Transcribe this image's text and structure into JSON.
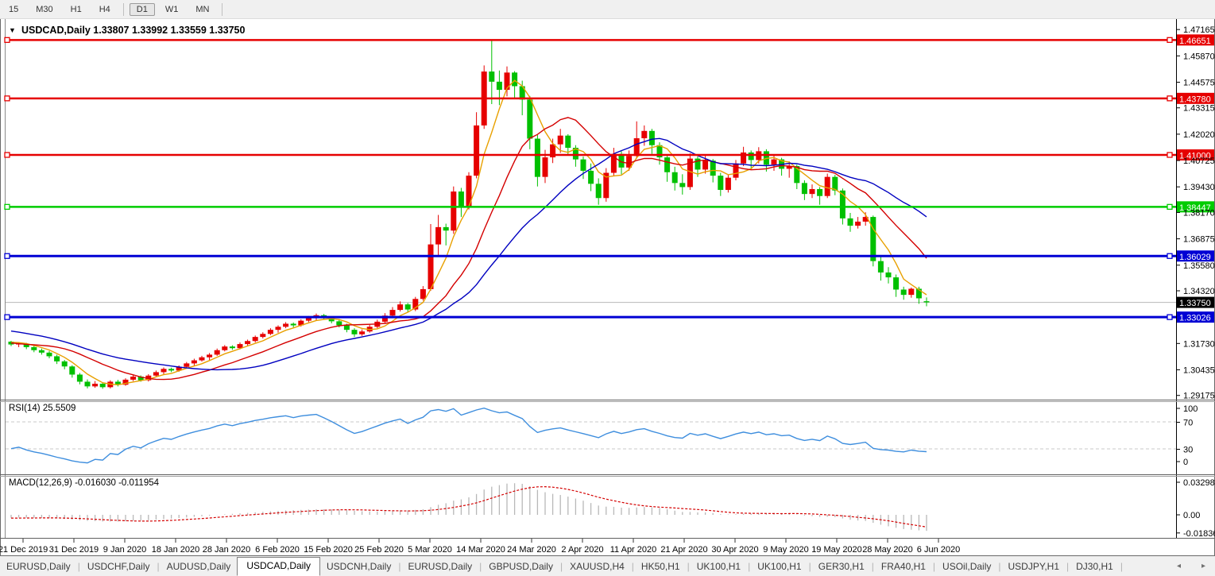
{
  "toolbar": {
    "timeframes": [
      "15",
      "M30",
      "H1",
      "H4",
      "D1",
      "W1",
      "MN"
    ],
    "active": "D1",
    "separators_after": [
      "H4",
      "MN"
    ]
  },
  "chart": {
    "dropdown_glyph": "▼",
    "title": "USDCAD,Daily  1.33807 1.33992 1.33559 1.33750",
    "symbol": "USDCAD",
    "period": "Daily"
  },
  "chart_data": {
    "type": "candlestick",
    "title": "USDCAD,Daily",
    "ohlc_current": {
      "open": "1.33807",
      "high": "1.33992",
      "low": "1.33559",
      "close": "1.33750"
    },
    "colors": {
      "bull_candle": "#e60000",
      "bear_candle": "#00c000",
      "ma_fast": "#e8a000",
      "ma_mid": "#d40000",
      "ma_slow": "#0000c0",
      "red_level": "#e60000",
      "green_level": "#00cc00",
      "blue_level": "#0000d4",
      "current_price_line": "#b8b8b8",
      "rsi_line": "#3e8ede",
      "macd_hist": "#b8b8b8",
      "macd_signal": "#d40000"
    },
    "y_ticks": [
      "1.47165",
      "1.45870",
      "1.44575",
      "1.43315",
      "1.42020",
      "1.40725",
      "1.39430",
      "1.38170",
      "1.36875",
      "1.35580",
      "1.34320",
      "1.31730",
      "1.30435",
      "1.29175"
    ],
    "x_labels": [
      "21 Dec 2019",
      "31 Dec 2019",
      "9 Jan 2020",
      "18 Jan 2020",
      "28 Jan 2020",
      "6 Feb 2020",
      "15 Feb 2020",
      "25 Feb 2020",
      "5 Mar 2020",
      "14 Mar 2020",
      "24 Mar 2020",
      "2 Apr 2020",
      "11 Apr 2020",
      "21 Apr 2020",
      "30 Apr 2020",
      "9 May 2020",
      "19 May 2020",
      "28 May 2020",
      "6 Jun 2020"
    ],
    "hlines": [
      {
        "price": 1.46651,
        "label": "1.46651",
        "color": "red"
      },
      {
        "price": 1.4378,
        "label": "1.43780",
        "color": "red"
      },
      {
        "price": 1.41,
        "label": "1.41000",
        "color": "red"
      },
      {
        "price": 1.38447,
        "label": "1.38447",
        "color": "green"
      },
      {
        "price": 1.36029,
        "label": "1.36029",
        "color": "blue"
      },
      {
        "price": 1.33026,
        "label": "1.33026",
        "color": "blue"
      }
    ],
    "current_price": {
      "price": 1.3375,
      "label": "1.33750"
    },
    "moving_averages": [
      {
        "name": "fast",
        "period": 5,
        "color_key": "ma_fast"
      },
      {
        "name": "mid",
        "period": 13,
        "color_key": "ma_mid"
      },
      {
        "name": "slow",
        "period": 25,
        "color_key": "ma_slow"
      }
    ],
    "rsi": {
      "label": "RSI(14) 25.5509",
      "period": 14,
      "levels": [
        70,
        30
      ],
      "ticks": [
        {
          "v": 100,
          "label": "100"
        },
        {
          "v": 70,
          "label": "70"
        },
        {
          "v": 30,
          "label": "30"
        },
        {
          "v": 0,
          "label": "0"
        }
      ]
    },
    "macd": {
      "label": "MACD(12,26,9) -0.016030 -0.011954",
      "fast": 12,
      "slow": 26,
      "signal": 9,
      "ticks": [
        "0.032982",
        "0.00",
        "-0.01836"
      ]
    },
    "pre_closes": [
      1.3288,
      1.3295,
      1.3302,
      1.331,
      1.3305,
      1.3298,
      1.3312,
      1.332,
      1.3315,
      1.3308,
      1.3295,
      1.3285,
      1.327,
      1.3245,
      1.3218,
      1.3195,
      1.3172,
      1.316,
      1.3152,
      1.3158,
      1.3165,
      1.317,
      1.3175,
      1.318,
      1.3185,
      1.3182
    ],
    "candles": [
      [
        1.3182,
        1.3186,
        1.316,
        1.3168
      ],
      [
        1.3168,
        1.318,
        1.3155,
        1.3172
      ],
      [
        1.3172,
        1.3176,
        1.3145,
        1.3155
      ],
      [
        1.3155,
        1.3162,
        1.313,
        1.314
      ],
      [
        1.314,
        1.3148,
        1.3118,
        1.3128
      ],
      [
        1.3128,
        1.3136,
        1.31,
        1.311
      ],
      [
        1.311,
        1.3118,
        1.3072,
        1.3085
      ],
      [
        1.3085,
        1.3092,
        1.3046,
        1.306
      ],
      [
        1.306,
        1.3066,
        1.3005,
        1.302
      ],
      [
        1.302,
        1.3028,
        1.2972,
        1.2985
      ],
      [
        1.2985,
        1.2996,
        1.2952,
        1.2962
      ],
      [
        1.2962,
        1.2988,
        1.2955,
        1.2975
      ],
      [
        1.2975,
        1.2982,
        1.295,
        1.2958
      ],
      [
        1.2958,
        1.2992,
        1.2952,
        1.2985
      ],
      [
        1.2985,
        1.2994,
        1.2962,
        1.297
      ],
      [
        1.297,
        1.3002,
        1.2965,
        1.2995
      ],
      [
        1.2995,
        1.3018,
        1.2988,
        1.301
      ],
      [
        1.301,
        1.3016,
        1.2985,
        1.2992
      ],
      [
        1.2992,
        1.3022,
        1.2986,
        1.3015
      ],
      [
        1.3015,
        1.304,
        1.3008,
        1.3032
      ],
      [
        1.3032,
        1.3055,
        1.3018,
        1.3048
      ],
      [
        1.3048,
        1.3054,
        1.3032,
        1.304
      ],
      [
        1.304,
        1.3065,
        1.3034,
        1.3058
      ],
      [
        1.3058,
        1.3082,
        1.3052,
        1.3075
      ],
      [
        1.3075,
        1.3098,
        1.3062,
        1.309
      ],
      [
        1.309,
        1.3112,
        1.3084,
        1.3105
      ],
      [
        1.3105,
        1.3126,
        1.3092,
        1.3118
      ],
      [
        1.3118,
        1.3148,
        1.3112,
        1.314
      ],
      [
        1.314,
        1.3165,
        1.3134,
        1.3158
      ],
      [
        1.3158,
        1.3164,
        1.3142,
        1.315
      ],
      [
        1.315,
        1.3178,
        1.3144,
        1.317
      ],
      [
        1.317,
        1.3192,
        1.3162,
        1.3185
      ],
      [
        1.3185,
        1.3212,
        1.3178,
        1.3205
      ],
      [
        1.3205,
        1.3228,
        1.3198,
        1.322
      ],
      [
        1.322,
        1.3248,
        1.3214,
        1.324
      ],
      [
        1.324,
        1.3262,
        1.3226,
        1.3255
      ],
      [
        1.3255,
        1.3278,
        1.3248,
        1.327
      ],
      [
        1.327,
        1.3276,
        1.3252,
        1.3262
      ],
      [
        1.3262,
        1.3292,
        1.3256,
        1.3285
      ],
      [
        1.3285,
        1.3308,
        1.3278,
        1.33
      ],
      [
        1.33,
        1.332,
        1.3286,
        1.3312
      ],
      [
        1.3312,
        1.3318,
        1.329,
        1.3298
      ],
      [
        1.3298,
        1.3305,
        1.3272,
        1.3282
      ],
      [
        1.3282,
        1.329,
        1.3252,
        1.3262
      ],
      [
        1.3262,
        1.327,
        1.3228,
        1.324
      ],
      [
        1.324,
        1.3248,
        1.3205,
        1.3218
      ],
      [
        1.3218,
        1.3242,
        1.321,
        1.3232
      ],
      [
        1.3232,
        1.3265,
        1.3226,
        1.3255
      ],
      [
        1.3255,
        1.329,
        1.3248,
        1.328
      ],
      [
        1.328,
        1.3322,
        1.3272,
        1.331
      ],
      [
        1.331,
        1.3352,
        1.3302,
        1.3338
      ],
      [
        1.3338,
        1.338,
        1.333,
        1.3365
      ],
      [
        1.3365,
        1.3372,
        1.3326,
        1.334
      ],
      [
        1.334,
        1.3402,
        1.3332,
        1.3392
      ],
      [
        1.3392,
        1.3455,
        1.3384,
        1.344
      ],
      [
        1.344,
        1.376,
        1.3432,
        1.366
      ],
      [
        1.366,
        1.3805,
        1.3598,
        1.3745
      ],
      [
        1.3745,
        1.3762,
        1.3655,
        1.3728
      ],
      [
        1.3728,
        1.3945,
        1.3712,
        1.392
      ],
      [
        1.392,
        1.3938,
        1.3795,
        1.3842
      ],
      [
        1.3842,
        1.4015,
        1.3832,
        1.3998
      ],
      [
        1.3998,
        1.431,
        1.3985,
        1.4245
      ],
      [
        1.4245,
        1.454,
        1.4228,
        1.451
      ],
      [
        1.451,
        1.46651,
        1.435,
        1.446
      ],
      [
        1.446,
        1.4515,
        1.4345,
        1.442
      ],
      [
        1.442,
        1.4535,
        1.4388,
        1.4505
      ],
      [
        1.4505,
        1.4512,
        1.438,
        1.4438
      ],
      [
        1.4438,
        1.4465,
        1.4295,
        1.4372
      ],
      [
        1.4372,
        1.439,
        1.4128,
        1.418
      ],
      [
        1.418,
        1.4198,
        1.3945,
        1.3992
      ],
      [
        1.3992,
        1.4125,
        1.3962,
        1.4088
      ],
      [
        1.4088,
        1.418,
        1.406,
        1.4152
      ],
      [
        1.4152,
        1.4228,
        1.411,
        1.4195
      ],
      [
        1.4195,
        1.4202,
        1.4098,
        1.4135
      ],
      [
        1.4135,
        1.4148,
        1.4042,
        1.4078
      ],
      [
        1.4078,
        1.4092,
        1.3982,
        1.4022
      ],
      [
        1.4022,
        1.4058,
        1.3922,
        1.3958
      ],
      [
        1.3958,
        1.3985,
        1.3855,
        1.3888
      ],
      [
        1.3888,
        1.4035,
        1.387,
        1.4012
      ],
      [
        1.4012,
        1.4135,
        1.3998,
        1.4105
      ],
      [
        1.4105,
        1.4118,
        1.4005,
        1.4038
      ],
      [
        1.4038,
        1.4122,
        1.4022,
        1.4095
      ],
      [
        1.4095,
        1.4265,
        1.4082,
        1.4182
      ],
      [
        1.4182,
        1.4245,
        1.4145,
        1.4218
      ],
      [
        1.4218,
        1.4228,
        1.4105,
        1.4148
      ],
      [
        1.4148,
        1.4162,
        1.4052,
        1.4088
      ],
      [
        1.4088,
        1.4098,
        1.3968,
        1.4015
      ],
      [
        1.4015,
        1.4042,
        1.3925,
        1.3962
      ],
      [
        1.3962,
        1.4005,
        1.3905,
        1.3942
      ],
      [
        1.3942,
        1.4108,
        1.3928,
        1.4082
      ],
      [
        1.4082,
        1.4092,
        1.3992,
        1.4028
      ],
      [
        1.4028,
        1.4095,
        1.4008,
        1.4072
      ],
      [
        1.4072,
        1.408,
        1.3965,
        1.3998
      ],
      [
        1.3998,
        1.4012,
        1.3898,
        1.3928
      ],
      [
        1.3928,
        1.4002,
        1.3915,
        1.3988
      ],
      [
        1.3988,
        1.4075,
        1.3975,
        1.4058
      ],
      [
        1.4058,
        1.414,
        1.4045,
        1.4112
      ],
      [
        1.4112,
        1.4122,
        1.4035,
        1.4075
      ],
      [
        1.4075,
        1.4138,
        1.4058,
        1.4118
      ],
      [
        1.4118,
        1.4128,
        1.4018,
        1.4052
      ],
      [
        1.4052,
        1.4098,
        1.4022,
        1.4078
      ],
      [
        1.4078,
        1.4086,
        1.3998,
        1.4032
      ],
      [
        1.4032,
        1.4068,
        1.3988,
        1.4045
      ],
      [
        1.4045,
        1.4052,
        1.3932,
        1.3962
      ],
      [
        1.3962,
        1.3975,
        1.3878,
        1.3908
      ],
      [
        1.3908,
        1.3955,
        1.3888,
        1.3932
      ],
      [
        1.3932,
        1.3942,
        1.3855,
        1.3898
      ],
      [
        1.3898,
        1.4008,
        1.3888,
        1.3992
      ],
      [
        1.3992,
        1.4002,
        1.3902,
        1.3925
      ],
      [
        1.3925,
        1.3935,
        1.3758,
        1.3788
      ],
      [
        1.3788,
        1.3815,
        1.3722,
        1.3752
      ],
      [
        1.3752,
        1.3795,
        1.3738,
        1.3772
      ],
      [
        1.3772,
        1.3818,
        1.3752,
        1.3795
      ],
      [
        1.3795,
        1.3802,
        1.3552,
        1.3578
      ],
      [
        1.3578,
        1.3608,
        1.3482,
        1.3522
      ],
      [
        1.3522,
        1.3548,
        1.3468,
        1.3498
      ],
      [
        1.3498,
        1.3512,
        1.3402,
        1.3438
      ],
      [
        1.3438,
        1.3452,
        1.3388,
        1.3412
      ],
      [
        1.3412,
        1.3448,
        1.3398,
        1.3442
      ],
      [
        1.3442,
        1.3452,
        1.3368,
        1.3395
      ],
      [
        1.33807,
        1.33992,
        1.33559,
        1.3375
      ]
    ]
  },
  "tabs": {
    "items": [
      "EURUSD,Daily",
      "USDCHF,Daily",
      "AUDUSD,Daily",
      "USDCAD,Daily",
      "USDCNH,Daily",
      "EURUSD,Daily",
      "GBPUSD,Daily",
      "XAUUSD,H4",
      "HK50,H1",
      "UK100,H1",
      "UK100,H1",
      "GER30,H1",
      "FRA40,H1",
      "USOil,Daily",
      "USDJPY,H1",
      "DJ30,H1"
    ],
    "active_index": 3,
    "arrow_left": "◂",
    "arrow_right": "▸"
  }
}
